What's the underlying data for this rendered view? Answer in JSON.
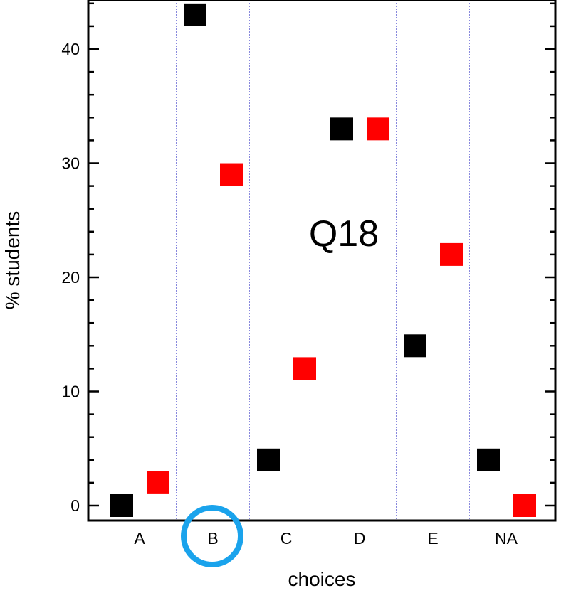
{
  "chart_data": {
    "type": "scatter",
    "categories": [
      "A",
      "B",
      "C",
      "D",
      "E",
      "NA"
    ],
    "series": [
      {
        "color": "#000000",
        "values": [
          0,
          43,
          4,
          33,
          14,
          4
        ]
      },
      {
        "color": "#ff0000",
        "values": [
          2,
          29,
          12,
          33,
          22,
          0
        ]
      }
    ],
    "title": "",
    "annotation": "Q18",
    "xlabel": "choices",
    "ylabel": "% students",
    "ylim": [
      -1,
      44
    ],
    "yticks": [
      0,
      10,
      20,
      30,
      40
    ],
    "yminor_step": 2,
    "highlighted_category": "B",
    "highlight_color": "#1aa3ec",
    "grid": {
      "x": true,
      "y": false,
      "color": "#8888dd"
    },
    "legend": "none"
  }
}
